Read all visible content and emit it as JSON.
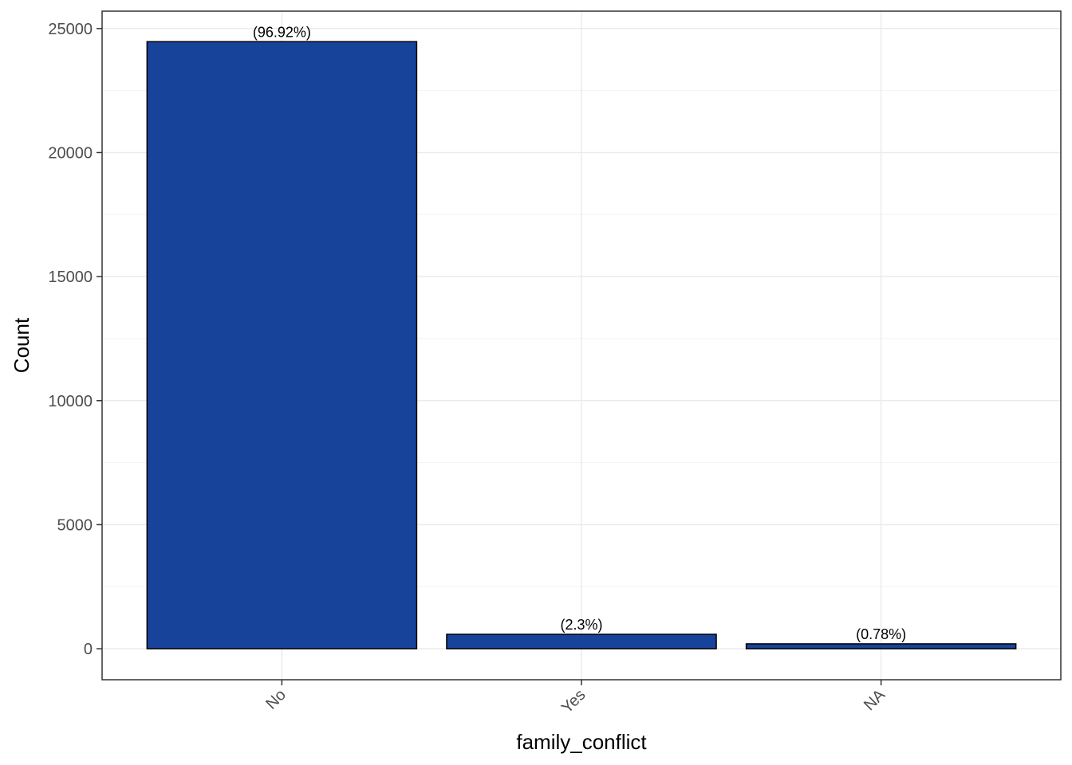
{
  "chart_data": {
    "type": "bar",
    "categories": [
      "No",
      "Yes",
      "NA"
    ],
    "values": [
      24470,
      581,
      197
    ],
    "data_labels": [
      "(96.92%)",
      "(2.3%)",
      "(0.78%)"
    ],
    "xlabel": "family_conflict",
    "ylabel": "Count",
    "ylim": [
      -1250,
      25700
    ],
    "yticks": [
      0,
      5000,
      10000,
      15000,
      20000,
      25000
    ],
    "ytick_labels": [
      "0",
      "5000",
      "10000",
      "15000",
      "20000",
      "25000"
    ],
    "grid": true,
    "legend": "none",
    "bar_color": "#17439B",
    "bar_edge_color": "#000000"
  }
}
